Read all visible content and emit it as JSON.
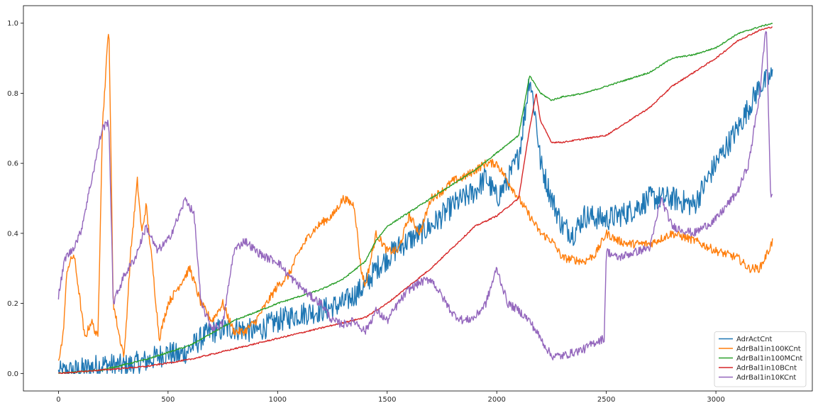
{
  "chart_data": {
    "type": "line",
    "title": "",
    "xlabel": "",
    "ylabel": "",
    "xlim": [
      -160,
      3440
    ],
    "ylim": [
      -0.05,
      1.05
    ],
    "x_ticks": [
      {
        "value": 0,
        "label": "0"
      },
      {
        "value": 500,
        "label": "500"
      },
      {
        "value": 1000,
        "label": "1000"
      },
      {
        "value": 1500,
        "label": "1500"
      },
      {
        "value": 2000,
        "label": "2000"
      },
      {
        "value": 2500,
        "label": "2500"
      },
      {
        "value": 3000,
        "label": "3000"
      }
    ],
    "y_ticks": [
      {
        "value": 0.0,
        "label": "0.0"
      },
      {
        "value": 0.2,
        "label": "0.2"
      },
      {
        "value": 0.4,
        "label": "0.4"
      },
      {
        "value": 0.6,
        "label": "0.6"
      },
      {
        "value": 0.8,
        "label": "0.8"
      },
      {
        "value": 1.0,
        "label": "1.0"
      }
    ],
    "grid": false,
    "legend_position": "lower-right",
    "series": [
      {
        "name": "AdrActCnt",
        "color": "#1f77b4",
        "noise": 0.035,
        "points": [
          [
            0,
            0.0
          ],
          [
            100,
            0.01
          ],
          [
            200,
            0.025
          ],
          [
            300,
            0.02
          ],
          [
            400,
            0.035
          ],
          [
            500,
            0.06
          ],
          [
            550,
            0.05
          ],
          [
            600,
            0.07
          ],
          [
            650,
            0.1
          ],
          [
            700,
            0.12
          ],
          [
            800,
            0.13
          ],
          [
            900,
            0.12
          ],
          [
            1000,
            0.15
          ],
          [
            1100,
            0.17
          ],
          [
            1200,
            0.18
          ],
          [
            1300,
            0.2
          ],
          [
            1400,
            0.25
          ],
          [
            1450,
            0.3
          ],
          [
            1500,
            0.33
          ],
          [
            1550,
            0.36
          ],
          [
            1600,
            0.38
          ],
          [
            1700,
            0.42
          ],
          [
            1800,
            0.48
          ],
          [
            1900,
            0.52
          ],
          [
            1950,
            0.56
          ],
          [
            2000,
            0.5
          ],
          [
            2050,
            0.55
          ],
          [
            2100,
            0.62
          ],
          [
            2130,
            0.75
          ],
          [
            2150,
            0.85
          ],
          [
            2180,
            0.72
          ],
          [
            2200,
            0.6
          ],
          [
            2250,
            0.5
          ],
          [
            2300,
            0.42
          ],
          [
            2350,
            0.4
          ],
          [
            2400,
            0.45
          ],
          [
            2500,
            0.44
          ],
          [
            2600,
            0.46
          ],
          [
            2700,
            0.5
          ],
          [
            2800,
            0.5
          ],
          [
            2900,
            0.48
          ],
          [
            3000,
            0.6
          ],
          [
            3100,
            0.7
          ],
          [
            3200,
            0.82
          ],
          [
            3260,
            0.85
          ]
        ]
      },
      {
        "name": "AdrBal1in100KCnt",
        "color": "#ff7f0e",
        "noise": 0.012,
        "points": [
          [
            0,
            0.04
          ],
          [
            20,
            0.1
          ],
          [
            40,
            0.3
          ],
          [
            70,
            0.34
          ],
          [
            90,
            0.25
          ],
          [
            120,
            0.1
          ],
          [
            150,
            0.15
          ],
          [
            180,
            0.1
          ],
          [
            200,
            0.7
          ],
          [
            230,
            1.0
          ],
          [
            250,
            0.2
          ],
          [
            280,
            0.1
          ],
          [
            300,
            0.05
          ],
          [
            330,
            0.35
          ],
          [
            360,
            0.55
          ],
          [
            380,
            0.4
          ],
          [
            400,
            0.48
          ],
          [
            430,
            0.3
          ],
          [
            460,
            0.1
          ],
          [
            500,
            0.2
          ],
          [
            550,
            0.25
          ],
          [
            600,
            0.3
          ],
          [
            650,
            0.2
          ],
          [
            700,
            0.15
          ],
          [
            750,
            0.2
          ],
          [
            800,
            0.12
          ],
          [
            850,
            0.12
          ],
          [
            900,
            0.15
          ],
          [
            950,
            0.2
          ],
          [
            1000,
            0.25
          ],
          [
            1050,
            0.28
          ],
          [
            1100,
            0.35
          ],
          [
            1150,
            0.4
          ],
          [
            1200,
            0.43
          ],
          [
            1250,
            0.45
          ],
          [
            1300,
            0.5
          ],
          [
            1350,
            0.48
          ],
          [
            1380,
            0.3
          ],
          [
            1400,
            0.25
          ],
          [
            1450,
            0.4
          ],
          [
            1500,
            0.35
          ],
          [
            1550,
            0.35
          ],
          [
            1600,
            0.45
          ],
          [
            1650,
            0.4
          ],
          [
            1700,
            0.5
          ],
          [
            1750,
            0.52
          ],
          [
            1800,
            0.55
          ],
          [
            1850,
            0.56
          ],
          [
            1900,
            0.58
          ],
          [
            1950,
            0.6
          ],
          [
            2000,
            0.6
          ],
          [
            2050,
            0.55
          ],
          [
            2100,
            0.5
          ],
          [
            2150,
            0.45
          ],
          [
            2200,
            0.4
          ],
          [
            2250,
            0.38
          ],
          [
            2300,
            0.33
          ],
          [
            2400,
            0.32
          ],
          [
            2450,
            0.34
          ],
          [
            2500,
            0.4
          ],
          [
            2550,
            0.38
          ],
          [
            2600,
            0.37
          ],
          [
            2700,
            0.37
          ],
          [
            2800,
            0.4
          ],
          [
            2900,
            0.38
          ],
          [
            3000,
            0.35
          ],
          [
            3100,
            0.33
          ],
          [
            3150,
            0.3
          ],
          [
            3200,
            0.3
          ],
          [
            3240,
            0.35
          ],
          [
            3260,
            0.38
          ]
        ]
      },
      {
        "name": "AdrBal1in100MCnt",
        "color": "#2ca02c",
        "noise": 0.002,
        "points": [
          [
            0,
            0.0
          ],
          [
            200,
            0.01
          ],
          [
            400,
            0.04
          ],
          [
            600,
            0.08
          ],
          [
            800,
            0.15
          ],
          [
            1000,
            0.2
          ],
          [
            1200,
            0.24
          ],
          [
            1300,
            0.27
          ],
          [
            1400,
            0.32
          ],
          [
            1450,
            0.38
          ],
          [
            1500,
            0.42
          ],
          [
            1600,
            0.46
          ],
          [
            1700,
            0.5
          ],
          [
            1800,
            0.54
          ],
          [
            1900,
            0.58
          ],
          [
            2000,
            0.63
          ],
          [
            2100,
            0.68
          ],
          [
            2150,
            0.85
          ],
          [
            2200,
            0.8
          ],
          [
            2250,
            0.78
          ],
          [
            2300,
            0.79
          ],
          [
            2400,
            0.8
          ],
          [
            2500,
            0.82
          ],
          [
            2600,
            0.84
          ],
          [
            2700,
            0.86
          ],
          [
            2800,
            0.9
          ],
          [
            2900,
            0.91
          ],
          [
            3000,
            0.93
          ],
          [
            3100,
            0.97
          ],
          [
            3200,
            0.99
          ],
          [
            3260,
            1.0
          ]
        ]
      },
      {
        "name": "AdrBal1in10BCnt",
        "color": "#d62728",
        "noise": 0.002,
        "points": [
          [
            0,
            0.0
          ],
          [
            200,
            0.01
          ],
          [
            400,
            0.02
          ],
          [
            600,
            0.04
          ],
          [
            800,
            0.07
          ],
          [
            1000,
            0.1
          ],
          [
            1200,
            0.13
          ],
          [
            1400,
            0.16
          ],
          [
            1500,
            0.2
          ],
          [
            1600,
            0.25
          ],
          [
            1700,
            0.3
          ],
          [
            1800,
            0.36
          ],
          [
            1900,
            0.42
          ],
          [
            2000,
            0.45
          ],
          [
            2100,
            0.5
          ],
          [
            2150,
            0.7
          ],
          [
            2180,
            0.8
          ],
          [
            2200,
            0.72
          ],
          [
            2250,
            0.66
          ],
          [
            2300,
            0.66
          ],
          [
            2400,
            0.67
          ],
          [
            2500,
            0.68
          ],
          [
            2600,
            0.72
          ],
          [
            2700,
            0.76
          ],
          [
            2800,
            0.82
          ],
          [
            2900,
            0.86
          ],
          [
            3000,
            0.9
          ],
          [
            3100,
            0.95
          ],
          [
            3200,
            0.98
          ],
          [
            3260,
            0.99
          ]
        ]
      },
      {
        "name": "AdrBal1in10KCnt",
        "color": "#9467bd",
        "noise": 0.012,
        "points": [
          [
            0,
            0.22
          ],
          [
            30,
            0.33
          ],
          [
            60,
            0.35
          ],
          [
            100,
            0.4
          ],
          [
            150,
            0.55
          ],
          [
            200,
            0.7
          ],
          [
            230,
            0.72
          ],
          [
            250,
            0.2
          ],
          [
            300,
            0.28
          ],
          [
            350,
            0.33
          ],
          [
            400,
            0.42
          ],
          [
            450,
            0.35
          ],
          [
            500,
            0.38
          ],
          [
            550,
            0.45
          ],
          [
            580,
            0.5
          ],
          [
            620,
            0.45
          ],
          [
            650,
            0.2
          ],
          [
            700,
            0.13
          ],
          [
            750,
            0.14
          ],
          [
            800,
            0.35
          ],
          [
            850,
            0.38
          ],
          [
            900,
            0.35
          ],
          [
            950,
            0.33
          ],
          [
            1000,
            0.32
          ],
          [
            1050,
            0.28
          ],
          [
            1100,
            0.25
          ],
          [
            1150,
            0.22
          ],
          [
            1200,
            0.2
          ],
          [
            1250,
            0.15
          ],
          [
            1300,
            0.14
          ],
          [
            1350,
            0.15
          ],
          [
            1400,
            0.12
          ],
          [
            1450,
            0.18
          ],
          [
            1500,
            0.15
          ],
          [
            1550,
            0.2
          ],
          [
            1600,
            0.24
          ],
          [
            1650,
            0.26
          ],
          [
            1700,
            0.27
          ],
          [
            1750,
            0.22
          ],
          [
            1800,
            0.17
          ],
          [
            1850,
            0.15
          ],
          [
            1900,
            0.16
          ],
          [
            1950,
            0.2
          ],
          [
            2000,
            0.3
          ],
          [
            2050,
            0.2
          ],
          [
            2100,
            0.18
          ],
          [
            2150,
            0.15
          ],
          [
            2200,
            0.1
          ],
          [
            2250,
            0.05
          ],
          [
            2300,
            0.05
          ],
          [
            2350,
            0.06
          ],
          [
            2400,
            0.07
          ],
          [
            2450,
            0.09
          ],
          [
            2490,
            0.1
          ],
          [
            2500,
            0.35
          ],
          [
            2550,
            0.33
          ],
          [
            2600,
            0.34
          ],
          [
            2700,
            0.36
          ],
          [
            2750,
            0.5
          ],
          [
            2800,
            0.42
          ],
          [
            2900,
            0.4
          ],
          [
            3000,
            0.44
          ],
          [
            3100,
            0.52
          ],
          [
            3150,
            0.6
          ],
          [
            3200,
            0.8
          ],
          [
            3230,
            1.0
          ],
          [
            3250,
            0.5
          ],
          [
            3260,
            0.52
          ]
        ]
      }
    ]
  }
}
